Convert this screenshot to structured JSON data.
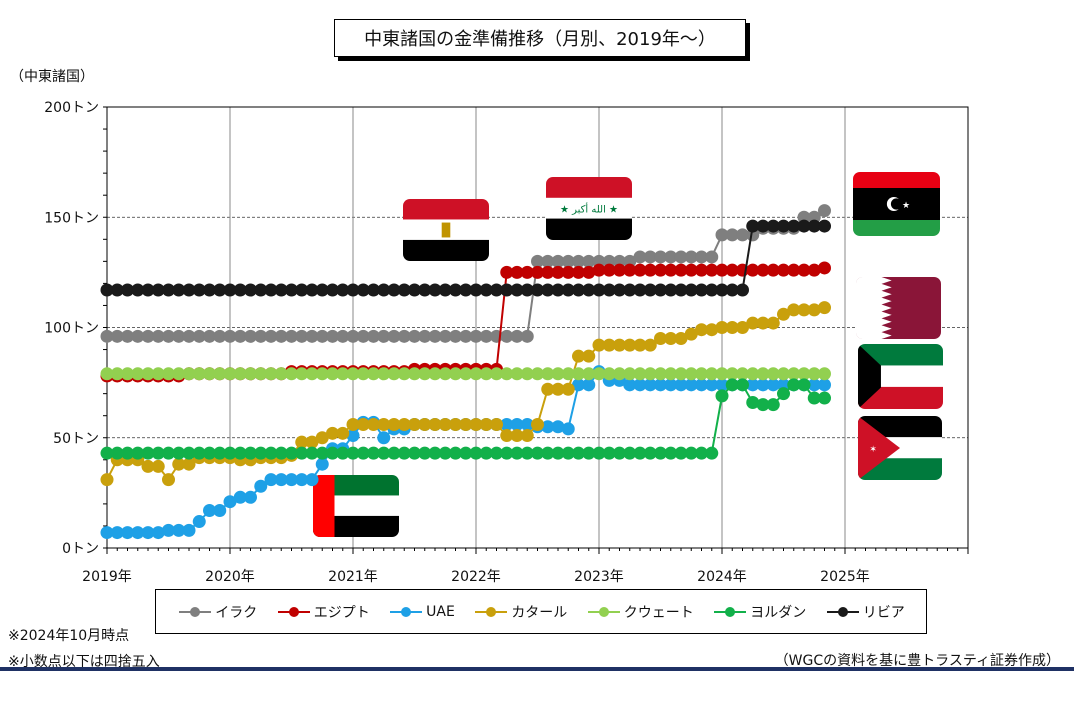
{
  "title": "中東諸国の金準備推移（月別、2019年～）",
  "y_unit_label": "（中東諸国）",
  "notes": [
    "※2024年10月時点",
    "※小数点以下は四捨五入"
  ],
  "source": "（WGCの資料を基に豊トラスティ証券作成）",
  "chart_data": {
    "type": "line",
    "title": "中東諸国の金準備推移（月別、2019年～）",
    "ylabel": "（中東諸国）",
    "ylim": [
      0,
      200
    ],
    "yticks": [
      0,
      50,
      100,
      150,
      200
    ],
    "ytick_labels": [
      "0トン",
      "50トン",
      "100トン",
      "150トン",
      "200トン"
    ],
    "xlim": [
      2019,
      2026
    ],
    "xtick_labels": [
      "2019年",
      "2020年",
      "2021年",
      "2022年",
      "2023年",
      "2024年",
      "2025年"
    ],
    "grid": true,
    "legend_position": "bottom",
    "series": [
      {
        "name": "イラク",
        "color": "#7f7f7f",
        "values": [
          [
            2019,
            96
          ],
          [
            2022.33,
            96
          ],
          [
            2022.42,
            130
          ],
          [
            2023.25,
            130
          ],
          [
            2023.33,
            132
          ],
          [
            2023.9,
            132
          ],
          [
            2023.92,
            142
          ],
          [
            2024.2,
            142
          ],
          [
            2024.3,
            145
          ],
          [
            2024.6,
            150
          ],
          [
            2024.83,
            153
          ]
        ]
      },
      {
        "name": "エジプト",
        "color": "#c00000",
        "values": [
          [
            2019,
            78
          ],
          [
            2019.6,
            79
          ],
          [
            2020.5,
            80
          ],
          [
            2021,
            80
          ],
          [
            2021.5,
            81
          ],
          [
            2022.08,
            81
          ],
          [
            2022.17,
            125
          ],
          [
            2022.5,
            125
          ],
          [
            2023,
            126
          ],
          [
            2024,
            126
          ],
          [
            2024.83,
            127
          ]
        ]
      },
      {
        "name": "UAE",
        "color": "#1ea0e6",
        "values": [
          [
            2019,
            7
          ],
          [
            2019.5,
            8
          ],
          [
            2019.58,
            8
          ],
          [
            2019.67,
            12
          ],
          [
            2019.83,
            17
          ],
          [
            2020,
            21
          ],
          [
            2020.08,
            23
          ],
          [
            2020.17,
            28
          ],
          [
            2020.33,
            31
          ],
          [
            2020.58,
            31
          ],
          [
            2020.67,
            38
          ],
          [
            2020.75,
            38
          ],
          [
            2020.83,
            45
          ],
          [
            2020.92,
            45
          ],
          [
            2021,
            51
          ],
          [
            2021.08,
            57
          ],
          [
            2021.17,
            50
          ],
          [
            2021.25,
            50
          ],
          [
            2021.33,
            54
          ],
          [
            2021.5,
            56
          ],
          [
            2022,
            56
          ],
          [
            2022.5,
            55
          ],
          [
            2022.67,
            56
          ],
          [
            2022.75,
            54
          ],
          [
            2022.83,
            74
          ],
          [
            2022.92,
            74
          ],
          [
            2023,
            80
          ],
          [
            2023.08,
            76
          ],
          [
            2023.17,
            74
          ],
          [
            2024,
            74
          ],
          [
            2024.83,
            74
          ]
        ]
      },
      {
        "name": "カタール",
        "color": "#c9a00c",
        "values": [
          [
            2019,
            31
          ],
          [
            2019.08,
            40
          ],
          [
            2019.25,
            40
          ],
          [
            2019.33,
            37
          ],
          [
            2019.42,
            31
          ],
          [
            2019.5,
            31
          ],
          [
            2019.58,
            38
          ],
          [
            2019.67,
            41
          ],
          [
            2020,
            41
          ],
          [
            2020.08,
            40
          ],
          [
            2020.25,
            41
          ],
          [
            2020.5,
            42
          ],
          [
            2020.58,
            48
          ],
          [
            2020.67,
            50
          ],
          [
            2020.83,
            52
          ],
          [
            2021,
            56
          ],
          [
            2021.5,
            56
          ],
          [
            2022.08,
            56
          ],
          [
            2022.17,
            51
          ],
          [
            2022.33,
            51
          ],
          [
            2022.42,
            56
          ],
          [
            2022.5,
            56
          ],
          [
            2022.58,
            72
          ],
          [
            2022.75,
            72
          ],
          [
            2022.83,
            87
          ],
          [
            2022.92,
            88
          ],
          [
            2023,
            92
          ],
          [
            2023.42,
            92
          ],
          [
            2023.5,
            95
          ],
          [
            2023.67,
            97
          ],
          [
            2023.83,
            99
          ],
          [
            2024,
            100
          ],
          [
            2024.17,
            102
          ],
          [
            2024.42,
            102
          ],
          [
            2024.5,
            106
          ],
          [
            2024.58,
            108
          ],
          [
            2024.83,
            109
          ]
        ]
      },
      {
        "name": "クウェート",
        "color": "#92d050",
        "values": [
          [
            2019,
            79
          ],
          [
            2024.83,
            79
          ]
        ]
      },
      {
        "name": "ヨルダン",
        "color": "#12b04a",
        "values": [
          [
            2019,
            43
          ],
          [
            2023.92,
            43
          ],
          [
            2024,
            69
          ],
          [
            2024.08,
            74
          ],
          [
            2024.17,
            70
          ],
          [
            2024.25,
            66
          ],
          [
            2024.33,
            65
          ],
          [
            2024.42,
            65
          ],
          [
            2024.5,
            70
          ],
          [
            2024.58,
            74
          ],
          [
            2024.67,
            71
          ],
          [
            2024.75,
            68
          ],
          [
            2024.83,
            68
          ]
        ]
      },
      {
        "name": "リビア",
        "color": "#1a1a1a",
        "values": [
          [
            2019,
            117
          ],
          [
            2024.17,
            117
          ],
          [
            2024.25,
            146
          ],
          [
            2024.83,
            146
          ]
        ]
      }
    ],
    "annotations": [
      "エジプト国旗",
      "イラク国旗",
      "リビア国旗",
      "カタール国旗",
      "クウェート国旗",
      "ヨルダン国旗",
      "UAE国旗"
    ]
  }
}
